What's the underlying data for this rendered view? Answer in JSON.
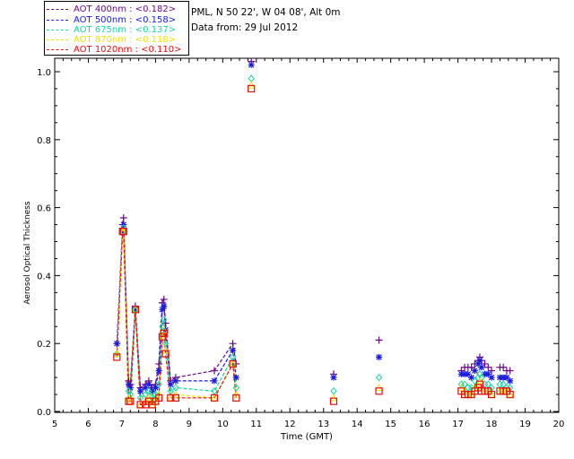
{
  "info": {
    "station": "PML, N 50 22', W 04 08', Alt 0m",
    "data_from": "Data from: 29 Jul 2012"
  },
  "legend": [
    {
      "text": "AOT  400nm : <0.182>",
      "color": "#6a0a8a"
    },
    {
      "text": "AOT  500nm : <0.158>",
      "color": "#1a1adc"
    },
    {
      "text": "AOT  675nm : <0.137>",
      "color": "#18d4a4"
    },
    {
      "text": "AOT  870nm : <0.118>",
      "color": "#f0e00a"
    },
    {
      "text": "AOT 1020nm : <0.110>",
      "color": "#e01010"
    }
  ],
  "chart_data": {
    "type": "line",
    "title": "",
    "xlabel": "Time (GMT)",
    "ylabel": "Aerosol Optical Thickness",
    "xlim": [
      5,
      20
    ],
    "ylim": [
      0.0,
      1.05
    ],
    "x_ticks": [
      "5",
      "6",
      "7",
      "8",
      "9",
      "10",
      "11",
      "12",
      "13",
      "14",
      "15",
      "16",
      "17",
      "18",
      "19",
      "20"
    ],
    "y_ticks": [
      "0.0",
      "0.2",
      "0.4",
      "0.6",
      "0.8",
      "1.0"
    ],
    "grid": false,
    "legend_position": "top-left outside",
    "series": [
      {
        "name": "AOT  400nm : <0.182>",
        "marker": "+",
        "color": "#6a0a8a",
        "connected": true,
        "x": [
          6.85,
          7.02,
          7.05,
          7.2,
          7.25,
          7.4,
          7.55,
          7.7,
          7.8,
          7.9,
          8.0,
          8.1,
          8.2,
          8.25,
          8.3,
          8.45,
          8.6,
          9.75,
          10.3,
          10.4
        ],
        "y": [
          0.2,
          0.55,
          0.57,
          0.09,
          0.08,
          0.31,
          0.07,
          0.08,
          0.09,
          0.07,
          0.08,
          0.14,
          0.32,
          0.33,
          0.26,
          0.09,
          0.1,
          0.12,
          0.2,
          0.14
        ]
      },
      {
        "name": "AOT  500nm : <0.158>",
        "marker": "*",
        "color": "#1a1adc",
        "connected": true,
        "x": [
          6.85,
          7.02,
          7.05,
          7.2,
          7.25,
          7.4,
          7.55,
          7.7,
          7.8,
          7.9,
          8.0,
          8.1,
          8.2,
          8.25,
          8.3,
          8.45,
          8.6,
          9.75,
          10.3,
          10.4
        ],
        "y": [
          0.2,
          0.53,
          0.55,
          0.08,
          0.07,
          0.3,
          0.06,
          0.07,
          0.08,
          0.06,
          0.07,
          0.12,
          0.3,
          0.31,
          0.24,
          0.08,
          0.09,
          0.09,
          0.18,
          0.1
        ]
      },
      {
        "name": "AOT  675nm : <0.137>",
        "marker": "diamond",
        "color": "#18d4a4",
        "connected": true,
        "x": [
          6.85,
          7.02,
          7.05,
          7.2,
          7.25,
          7.4,
          7.55,
          7.7,
          7.8,
          7.9,
          8.0,
          8.1,
          8.2,
          8.25,
          8.3,
          8.45,
          8.6,
          9.75,
          10.3,
          10.4
        ],
        "y": [
          0.17,
          0.53,
          0.54,
          0.06,
          0.05,
          0.3,
          0.04,
          0.05,
          0.06,
          0.04,
          0.05,
          0.08,
          0.25,
          0.27,
          0.2,
          0.06,
          0.07,
          0.06,
          0.16,
          0.07
        ]
      },
      {
        "name": "AOT  870nm : <0.118>",
        "marker": "triangle",
        "color": "#f0e00a",
        "connected": true,
        "x": [
          6.85,
          7.02,
          7.05,
          7.2,
          7.25,
          7.4,
          7.55,
          7.7,
          7.8,
          7.9,
          8.0,
          8.1,
          8.2,
          8.25,
          8.3,
          8.45,
          8.6,
          9.75,
          10.3,
          10.4
        ],
        "y": [
          0.17,
          0.53,
          0.53,
          0.04,
          0.03,
          0.3,
          0.02,
          0.03,
          0.04,
          0.02,
          0.03,
          0.05,
          0.22,
          0.24,
          0.18,
          0.04,
          0.05,
          0.04,
          0.14,
          0.05
        ]
      },
      {
        "name": "AOT 1020nm : <0.110>",
        "marker": "square",
        "color": "#e01010",
        "connected": true,
        "x": [
          6.85,
          7.02,
          7.05,
          7.2,
          7.25,
          7.4,
          7.55,
          7.7,
          7.8,
          7.9,
          8.0,
          8.1,
          8.2,
          8.25,
          8.3,
          8.45,
          8.6,
          9.75,
          10.3,
          10.4
        ],
        "y": [
          0.16,
          0.53,
          0.53,
          0.03,
          0.03,
          0.3,
          0.02,
          0.02,
          0.03,
          0.02,
          0.03,
          0.04,
          0.22,
          0.23,
          0.17,
          0.04,
          0.04,
          0.04,
          0.14,
          0.04
        ]
      }
    ],
    "scatter_series": [
      {
        "name": "AOT  400nm : <0.182>",
        "marker": "+",
        "color": "#6a0a8a",
        "x": [
          10.85,
          13.3,
          14.65,
          17.1,
          17.2,
          17.3,
          17.4,
          17.5,
          17.6,
          17.65,
          17.7,
          17.8,
          17.9,
          18.0,
          18.25,
          18.35,
          18.45,
          18.55
        ],
        "y": [
          1.03,
          0.11,
          0.21,
          0.12,
          0.13,
          0.13,
          0.13,
          0.14,
          0.15,
          0.16,
          0.15,
          0.14,
          0.13,
          0.12,
          0.13,
          0.13,
          0.12,
          0.12
        ]
      },
      {
        "name": "AOT  500nm : <0.158>",
        "marker": "*",
        "color": "#1a1adc",
        "x": [
          10.85,
          13.3,
          14.65,
          17.1,
          17.2,
          17.3,
          17.4,
          17.5,
          17.6,
          17.65,
          17.7,
          17.8,
          17.9,
          18.0,
          18.25,
          18.35,
          18.45,
          18.55
        ],
        "y": [
          1.02,
          0.1,
          0.16,
          0.11,
          0.11,
          0.11,
          0.1,
          0.12,
          0.14,
          0.15,
          0.13,
          0.11,
          0.11,
          0.1,
          0.1,
          0.1,
          0.1,
          0.09
        ]
      },
      {
        "name": "AOT  675nm : <0.137>",
        "marker": "diamond",
        "color": "#18d4a4",
        "x": [
          10.85,
          13.3,
          14.65,
          17.1,
          17.2,
          17.3,
          17.4,
          17.5,
          17.6,
          17.65,
          17.7,
          17.8,
          17.9,
          18.0,
          18.25,
          18.35,
          18.45,
          18.55
        ],
        "y": [
          0.98,
          0.06,
          0.1,
          0.08,
          0.08,
          0.07,
          0.07,
          0.09,
          0.1,
          0.11,
          0.1,
          0.08,
          0.08,
          0.07,
          0.08,
          0.08,
          0.07,
          0.07
        ]
      },
      {
        "name": "AOT  870nm : <0.118>",
        "marker": "triangle",
        "color": "#f0e00a",
        "x": [
          10.85,
          13.3,
          14.65,
          17.1,
          17.2,
          17.3,
          17.4,
          17.5,
          17.6,
          17.65,
          17.7,
          17.8,
          17.9,
          18.0,
          18.25,
          18.35,
          18.45,
          18.55
        ],
        "y": [
          0.96,
          0.04,
          0.07,
          0.07,
          0.06,
          0.05,
          0.05,
          0.07,
          0.08,
          0.09,
          0.07,
          0.06,
          0.06,
          0.05,
          0.06,
          0.06,
          0.06,
          0.05
        ]
      },
      {
        "name": "AOT 1020nm : <0.110>",
        "marker": "square",
        "color": "#e01010",
        "x": [
          10.85,
          13.3,
          14.65,
          17.1,
          17.2,
          17.3,
          17.4,
          17.5,
          17.6,
          17.65,
          17.7,
          17.8,
          17.9,
          18.0,
          18.25,
          18.35,
          18.45,
          18.55
        ],
        "y": [
          0.95,
          0.03,
          0.06,
          0.06,
          0.05,
          0.05,
          0.05,
          0.06,
          0.07,
          0.08,
          0.06,
          0.06,
          0.06,
          0.05,
          0.06,
          0.06,
          0.06,
          0.05
        ]
      }
    ]
  }
}
